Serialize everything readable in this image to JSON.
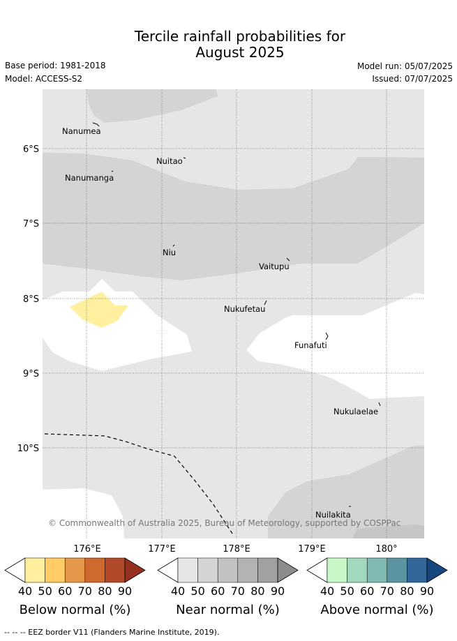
{
  "title_line1": "Tercile rainfall probabilities for",
  "title_line2": "August 2025",
  "base_period": "Base period: 1981-2018",
  "model": "Model: ACCESS-S2",
  "model_run": "Model run: 05/07/2025",
  "issued": "Issued: 07/07/2025",
  "latitudes": [
    "6°S",
    "7°S",
    "8°S",
    "9°S",
    "10°S"
  ],
  "longitudes": [
    "176°E",
    "177°E",
    "178°E",
    "179°E",
    "180°"
  ],
  "places": [
    "Nanumea",
    "Nuitao",
    "Nanumanga",
    "Niu",
    "Vaitupu",
    "Nukufetau",
    "Funafuti",
    "Nukulaelae",
    "Nuilakita"
  ],
  "copyright": "© Commonwealth of Australia 2025, Bureau of Meteorology, supported by COSPPac",
  "colorbars": [
    {
      "title": "Below normal (%)",
      "ticks": [
        "40",
        "50",
        "60",
        "70",
        "80",
        "90"
      ],
      "colors": [
        "#ffffff",
        "#fff0a0",
        "#ffcc66",
        "#e3984a",
        "#d0692f",
        "#b24a2a",
        "#96301f"
      ]
    },
    {
      "title": "Near normal (%)",
      "ticks": [
        "40",
        "50",
        "60",
        "70",
        "80",
        "90"
      ],
      "colors": [
        "#ffffff",
        "#e6e6e6",
        "#d4d4d4",
        "#c2c2c2",
        "#b3b3b3",
        "#a1a1a1",
        "#8c8c8c"
      ]
    },
    {
      "title": "Above normal (%)",
      "ticks": [
        "40",
        "50",
        "60",
        "70",
        "80",
        "90"
      ],
      "colors": [
        "#ffffff",
        "#c8f8c8",
        "#a2d8be",
        "#80b8b2",
        "#5b93a1",
        "#336699",
        "#16467e"
      ]
    }
  ],
  "footer": "-- -- -- EEZ border V11 (Flanders Marine Institute, 2019)."
}
